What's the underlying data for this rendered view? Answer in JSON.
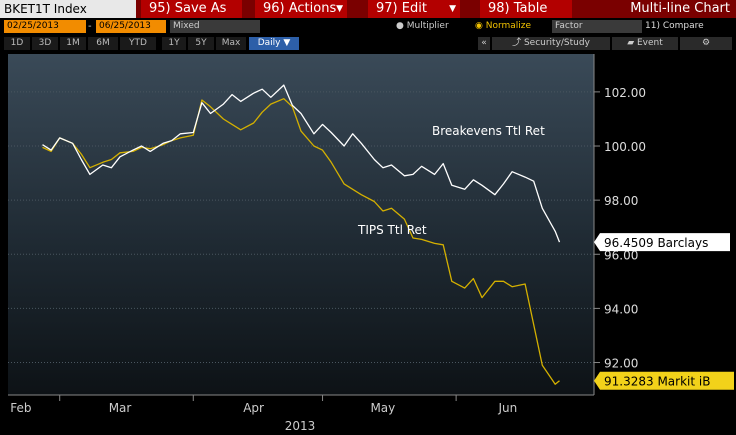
{
  "toolbar": {
    "ticker": "BKET1T Index",
    "save_as": "95) Save As",
    "actions": "96) Actions",
    "edit": "97) Edit",
    "table": "98) Table",
    "title": "Multi-line Chart"
  },
  "controls": {
    "start_date": "02/25/2013",
    "end_date": "06/25/2013",
    "mode": "Mixed",
    "multiplier": "Multiplier",
    "normalize": "Normalize",
    "factor": "Factor",
    "compare": "11) Compare"
  },
  "ranges": {
    "r1d": "1D",
    "r3d": "3D",
    "r1m": "1M",
    "r6m": "6M",
    "rytd": "YTD",
    "r1y": "1Y",
    "r5y": "5Y",
    "rmax": "Max",
    "period": "Daily ▼"
  },
  "tools": {
    "collapse": "«",
    "security": "Security/Study",
    "event": "Event",
    "settings": "⚙"
  },
  "colors": {
    "breakevens": "#ffffff",
    "tips": "#d4b000",
    "label_bg": "#ffffff",
    "tips_label_bg": "#f2d21a"
  },
  "chart_data": {
    "type": "line",
    "x_labels": [
      "Feb",
      "Mar",
      "Apr",
      "May",
      "Jun"
    ],
    "year_label": "2013",
    "y_ticks": [
      "102.00",
      "100.00",
      "98.00",
      "96.00",
      "94.00",
      "92.00"
    ],
    "ylim": [
      90.8,
      103.4
    ],
    "annotations": {
      "breakevens": "Breakevens Ttl Ret",
      "tips": "TIPS Ttl Ret"
    },
    "last_labels": {
      "breakevens": "96.4509 Barclays",
      "tips": "91.3283 Markit iB"
    },
    "series": [
      {
        "key": "breakevens",
        "x": [
          "2013-02-25",
          "2013-02-27",
          "2013-03-01",
          "2013-03-04",
          "2013-03-06",
          "2013-03-08",
          "2013-03-11",
          "2013-03-13",
          "2013-03-15",
          "2013-03-18",
          "2013-03-20",
          "2013-03-22",
          "2013-03-25",
          "2013-03-27",
          "2013-03-29",
          "2013-04-01",
          "2013-04-03",
          "2013-04-05",
          "2013-04-08",
          "2013-04-10",
          "2013-04-12",
          "2013-04-15",
          "2013-04-17",
          "2013-04-19",
          "2013-04-22",
          "2013-04-24",
          "2013-04-26",
          "2013-04-29",
          "2013-05-01",
          "2013-05-03",
          "2013-05-06",
          "2013-05-08",
          "2013-05-10",
          "2013-05-13",
          "2013-05-15",
          "2013-05-17",
          "2013-05-20",
          "2013-05-22",
          "2013-05-24",
          "2013-05-27",
          "2013-05-29",
          "2013-05-31",
          "2013-06-03",
          "2013-06-05",
          "2013-06-07",
          "2013-06-10",
          "2013-06-12",
          "2013-06-14",
          "2013-06-17",
          "2013-06-19",
          "2013-06-21",
          "2013-06-24",
          "2013-06-25"
        ],
        "values": [
          100.05,
          99.85,
          100.3,
          100.1,
          99.5,
          98.95,
          99.3,
          99.2,
          99.6,
          99.85,
          100.0,
          99.8,
          100.1,
          100.2,
          100.45,
          100.5,
          101.6,
          101.2,
          101.55,
          101.9,
          101.65,
          101.95,
          102.1,
          101.8,
          102.25,
          101.5,
          101.2,
          100.45,
          100.8,
          100.5,
          100.0,
          100.45,
          100.1,
          99.5,
          99.2,
          99.3,
          98.9,
          98.95,
          99.25,
          98.95,
          99.35,
          98.55,
          98.4,
          98.75,
          98.55,
          98.2,
          98.6,
          99.05,
          98.85,
          98.7,
          97.7,
          96.85,
          96.4509
        ]
      },
      {
        "key": "tips",
        "x": [
          "2013-02-25",
          "2013-02-27",
          "2013-03-01",
          "2013-03-04",
          "2013-03-06",
          "2013-03-08",
          "2013-03-11",
          "2013-03-13",
          "2013-03-15",
          "2013-03-18",
          "2013-03-20",
          "2013-03-22",
          "2013-03-25",
          "2013-03-27",
          "2013-03-29",
          "2013-04-01",
          "2013-04-03",
          "2013-04-05",
          "2013-04-08",
          "2013-04-10",
          "2013-04-12",
          "2013-04-15",
          "2013-04-17",
          "2013-04-19",
          "2013-04-22",
          "2013-04-24",
          "2013-04-26",
          "2013-04-29",
          "2013-05-01",
          "2013-05-03",
          "2013-05-06",
          "2013-05-08",
          "2013-05-10",
          "2013-05-13",
          "2013-05-15",
          "2013-05-17",
          "2013-05-20",
          "2013-05-22",
          "2013-05-24",
          "2013-05-27",
          "2013-05-29",
          "2013-05-31",
          "2013-06-03",
          "2013-06-05",
          "2013-06-07",
          "2013-06-10",
          "2013-06-12",
          "2013-06-14",
          "2013-06-17",
          "2013-06-19",
          "2013-06-21",
          "2013-06-24",
          "2013-06-25"
        ],
        "values": [
          99.95,
          99.8,
          100.3,
          100.1,
          99.7,
          99.2,
          99.4,
          99.5,
          99.75,
          99.8,
          99.95,
          99.9,
          100.05,
          100.2,
          100.3,
          100.4,
          101.7,
          101.45,
          101.0,
          100.8,
          100.6,
          100.85,
          101.25,
          101.55,
          101.75,
          101.45,
          100.55,
          100.0,
          99.85,
          99.4,
          98.6,
          98.4,
          98.2,
          97.95,
          97.6,
          97.7,
          97.3,
          96.6,
          96.55,
          96.4,
          96.35,
          95.0,
          94.75,
          95.1,
          94.4,
          95.0,
          95.0,
          94.8,
          94.9,
          93.4,
          91.9,
          91.2,
          91.3283
        ]
      }
    ]
  }
}
